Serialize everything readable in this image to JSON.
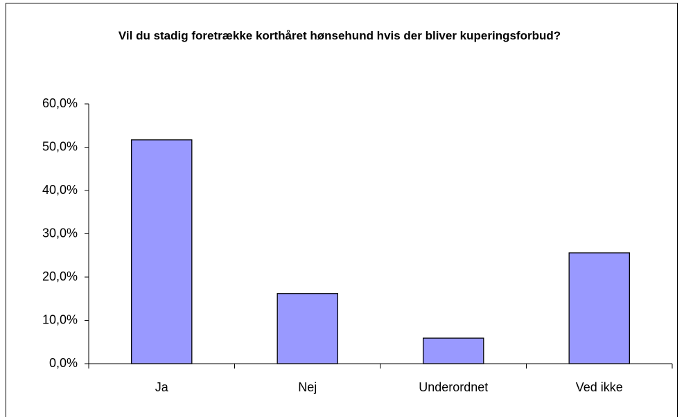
{
  "chart_data": {
    "type": "bar",
    "title": "Vil du stadig foretrække korthåret hønsehund hvis der bliver kuperingsforbud?",
    "categories": [
      "Ja",
      "Nej",
      "Underordnet",
      "Ved ikke"
    ],
    "values": [
      51.7,
      16.2,
      5.9,
      25.6
    ],
    "color": "#9999ff",
    "ylim": [
      0,
      60
    ],
    "yticks": [
      {
        "value": 0,
        "label": "0,0%"
      },
      {
        "value": 10,
        "label": "10,0%"
      },
      {
        "value": 20,
        "label": "20,0%"
      },
      {
        "value": 30,
        "label": "30,0%"
      },
      {
        "value": 40,
        "label": "40,0%"
      },
      {
        "value": 50,
        "label": "50,0%"
      },
      {
        "value": 60,
        "label": "60,0%"
      }
    ],
    "grid": false
  }
}
